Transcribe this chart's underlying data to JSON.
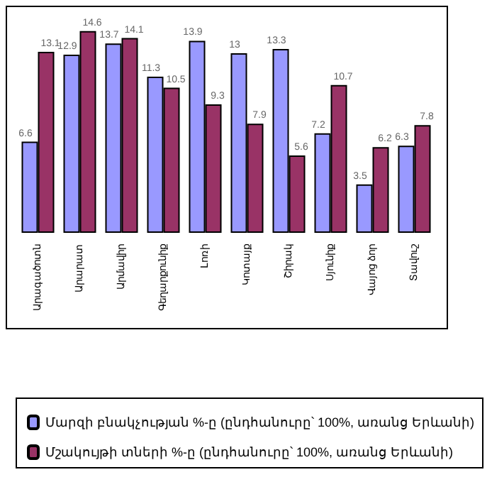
{
  "chart_data": {
    "type": "bar",
    "categories": [
      "Արագածոտն",
      "Արարատ",
      "Արմավիր",
      "Գեղարքունիք",
      "Լոռի",
      "Կոտայք",
      "Շիրակ",
      "Սյունիք",
      "Վայոց ձոր",
      "Տավուշ"
    ],
    "series": [
      {
        "name": "Մարզի բնակչության %-ը (ընդհանուրը՝ 100%, առանց Երևանի)",
        "color": "#9999ff",
        "values": [
          6.6,
          12.9,
          13.7,
          11.3,
          13.9,
          13,
          13.3,
          7.2,
          3.5,
          6.3
        ]
      },
      {
        "name": "Մշակույթի տների %-ը (ընդհանուրը՝ 100%, առանց Երևանի)",
        "color": "#993366",
        "values": [
          13.1,
          14.6,
          14.1,
          10.5,
          9.3,
          7.9,
          5.6,
          10.7,
          6.2,
          7.8
        ]
      }
    ],
    "data_labels": true,
    "legend": "bottom",
    "grid": false
  }
}
